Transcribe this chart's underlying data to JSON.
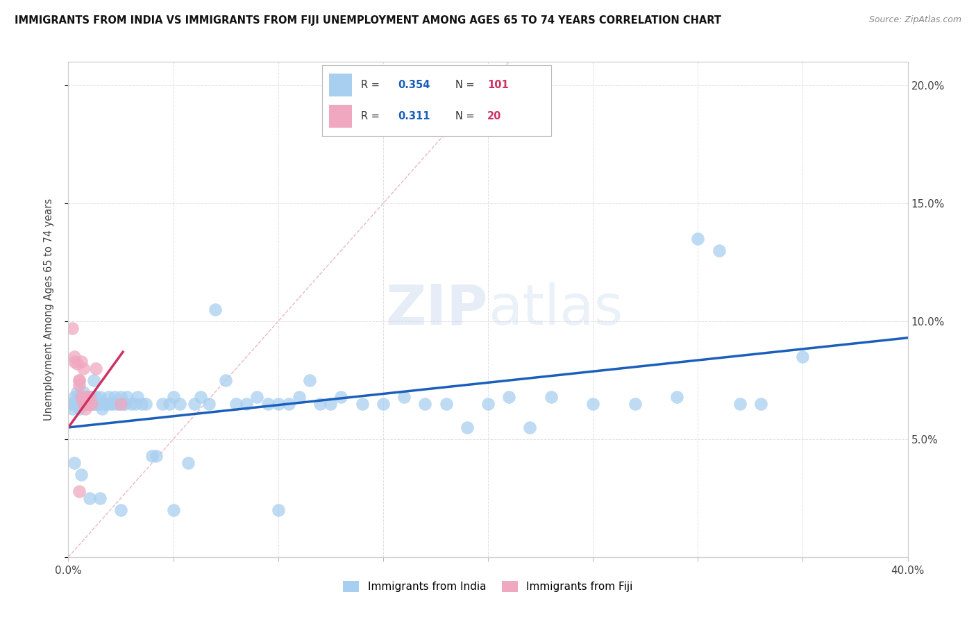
{
  "title": "IMMIGRANTS FROM INDIA VS IMMIGRANTS FROM FIJI UNEMPLOYMENT AMONG AGES 65 TO 74 YEARS CORRELATION CHART",
  "source": "Source: ZipAtlas.com",
  "ylabel": "Unemployment Among Ages 65 to 74 years",
  "xlim": [
    0.0,
    0.4
  ],
  "ylim": [
    0.0,
    0.21
  ],
  "india_R": "0.354",
  "india_N": "101",
  "fiji_R": "0.311",
  "fiji_N": "20",
  "india_color": "#a8cff0",
  "fiji_color": "#f0a8c0",
  "india_line_color": "#1a5fba",
  "fiji_line_color": "#d03060",
  "diagonal_color": "#e8a0b0",
  "watermark": "ZIPatlas",
  "india_line": [
    0.0,
    0.4,
    0.055,
    0.093
  ],
  "fiji_line": [
    0.0,
    0.026,
    0.055,
    0.087
  ],
  "india_x": [
    0.001,
    0.002,
    0.002,
    0.003,
    0.003,
    0.004,
    0.004,
    0.004,
    0.005,
    0.005,
    0.005,
    0.005,
    0.006,
    0.006,
    0.006,
    0.007,
    0.007,
    0.008,
    0.008,
    0.008,
    0.009,
    0.009,
    0.009,
    0.01,
    0.01,
    0.01,
    0.011,
    0.011,
    0.012,
    0.012,
    0.013,
    0.013,
    0.014,
    0.015,
    0.015,
    0.016,
    0.017,
    0.018,
    0.019,
    0.02,
    0.021,
    0.022,
    0.023,
    0.024,
    0.025,
    0.026,
    0.027,
    0.028,
    0.03,
    0.032,
    0.033,
    0.035,
    0.037,
    0.04,
    0.042,
    0.045,
    0.048,
    0.05,
    0.053,
    0.057,
    0.06,
    0.063,
    0.067,
    0.07,
    0.075,
    0.08,
    0.085,
    0.09,
    0.095,
    0.1,
    0.105,
    0.11,
    0.115,
    0.12,
    0.125,
    0.13,
    0.14,
    0.15,
    0.16,
    0.17,
    0.18,
    0.19,
    0.2,
    0.21,
    0.22,
    0.23,
    0.25,
    0.27,
    0.29,
    0.3,
    0.31,
    0.32,
    0.33,
    0.35,
    0.003,
    0.006,
    0.01,
    0.015,
    0.025,
    0.05,
    0.1
  ],
  "india_y": [
    0.065,
    0.065,
    0.063,
    0.068,
    0.065,
    0.065,
    0.068,
    0.07,
    0.065,
    0.065,
    0.063,
    0.068,
    0.065,
    0.065,
    0.068,
    0.065,
    0.07,
    0.065,
    0.065,
    0.068,
    0.065,
    0.065,
    0.068,
    0.065,
    0.065,
    0.068,
    0.065,
    0.068,
    0.065,
    0.075,
    0.065,
    0.068,
    0.065,
    0.065,
    0.068,
    0.063,
    0.065,
    0.065,
    0.068,
    0.065,
    0.065,
    0.068,
    0.065,
    0.065,
    0.068,
    0.065,
    0.065,
    0.068,
    0.065,
    0.065,
    0.068,
    0.065,
    0.065,
    0.043,
    0.043,
    0.065,
    0.065,
    0.068,
    0.065,
    0.04,
    0.065,
    0.068,
    0.065,
    0.105,
    0.075,
    0.065,
    0.065,
    0.068,
    0.065,
    0.065,
    0.065,
    0.068,
    0.075,
    0.065,
    0.065,
    0.068,
    0.065,
    0.065,
    0.068,
    0.065,
    0.065,
    0.055,
    0.065,
    0.068,
    0.055,
    0.068,
    0.065,
    0.065,
    0.068,
    0.135,
    0.13,
    0.065,
    0.065,
    0.085,
    0.04,
    0.035,
    0.025,
    0.025,
    0.02,
    0.02,
    0.02
  ],
  "fiji_x": [
    0.002,
    0.003,
    0.003,
    0.004,
    0.005,
    0.005,
    0.005,
    0.006,
    0.006,
    0.007,
    0.007,
    0.008,
    0.008,
    0.009,
    0.009,
    0.01,
    0.011,
    0.013,
    0.005,
    0.025
  ],
  "fiji_y": [
    0.097,
    0.085,
    0.083,
    0.082,
    0.075,
    0.075,
    0.073,
    0.083,
    0.068,
    0.065,
    0.08,
    0.068,
    0.063,
    0.065,
    0.065,
    0.068,
    0.065,
    0.08,
    0.028,
    0.065
  ]
}
